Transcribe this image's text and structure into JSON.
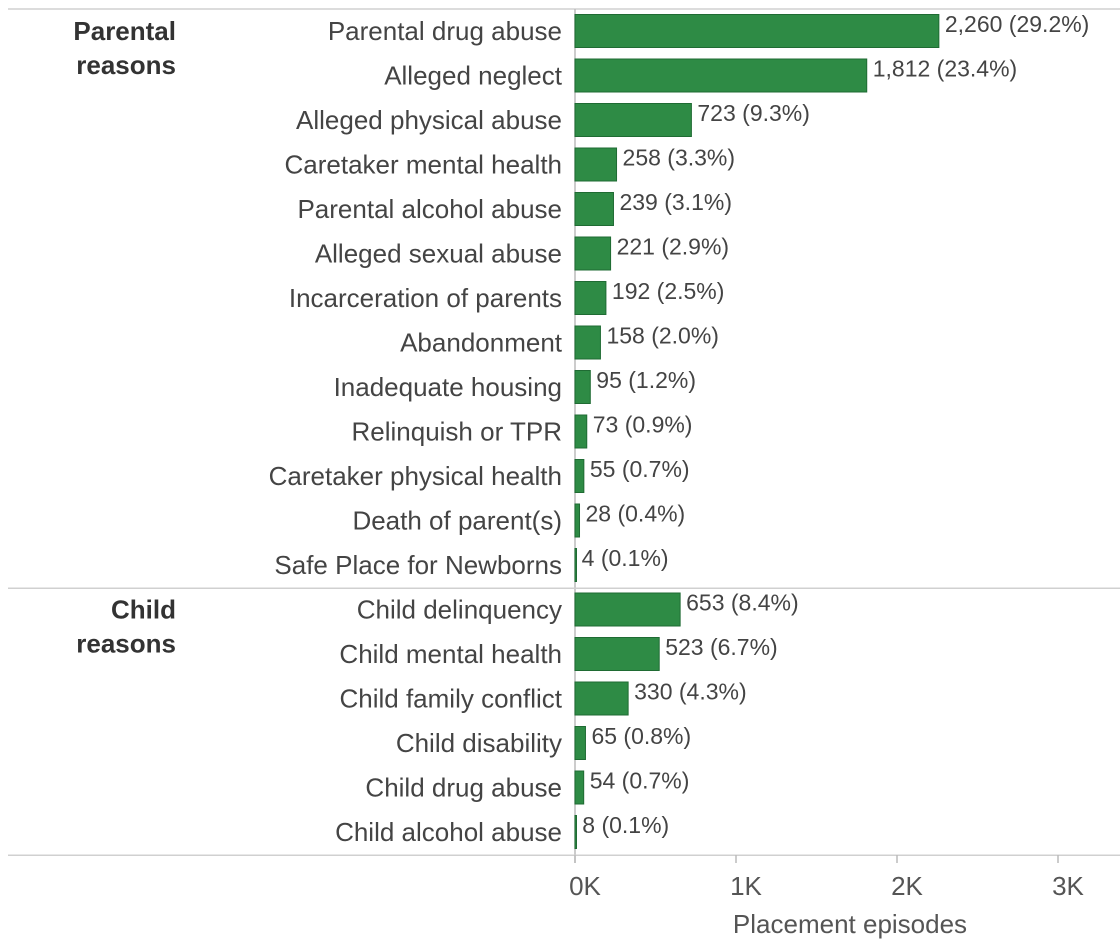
{
  "chart_data": {
    "type": "bar",
    "orientation": "horizontal",
    "groups": [
      {
        "label_lines": [
          "Parental",
          "reasons"
        ],
        "categories": [
          "Parental drug abuse",
          "Alleged neglect",
          "Alleged physical abuse",
          "Caretaker mental health",
          "Parental alcohol abuse",
          "Alleged sexual abuse",
          "Incarceration of parents",
          "Abandonment",
          "Inadequate housing",
          "Relinquish or TPR",
          "Caretaker physical health",
          "Death of parent(s)",
          "Safe Place for Newborns"
        ],
        "values": [
          2260,
          1812,
          723,
          258,
          239,
          221,
          192,
          158,
          95,
          73,
          55,
          28,
          4
        ],
        "data_labels": [
          "2,260 (29.2%)",
          "1,812 (23.4%)",
          "723 (9.3%)",
          "258 (3.3%)",
          "239 (3.1%)",
          "221 (2.9%)",
          "192 (2.5%)",
          "158 (2.0%)",
          "95 (1.2%)",
          "73 (0.9%)",
          "55 (0.7%)",
          "28 (0.4%)",
          "4 (0.1%)"
        ]
      },
      {
        "label_lines": [
          "Child",
          "reasons"
        ],
        "categories": [
          "Child delinquency",
          "Child mental health",
          "Child family conflict",
          "Child disability",
          "Child drug abuse",
          "Child alcohol abuse"
        ],
        "values": [
          653,
          523,
          330,
          65,
          54,
          8
        ],
        "data_labels": [
          "653 (8.4%)",
          "523 (6.7%)",
          "330 (4.3%)",
          "65 (0.8%)",
          "54 (0.7%)",
          "8 (0.1%)"
        ]
      }
    ],
    "xlabel": "Placement episodes",
    "xlim": [
      0,
      3400
    ],
    "x_ticks": [
      0,
      1000,
      2000,
      3000
    ],
    "x_tick_labels": [
      "0K",
      "1K",
      "2K",
      "3K"
    ],
    "grid": false,
    "colors": {
      "bar": "#2e8b45",
      "bar_stroke": "#1f6b33",
      "divider": "#d0d0d0",
      "axis": "#bbbbbb"
    }
  }
}
